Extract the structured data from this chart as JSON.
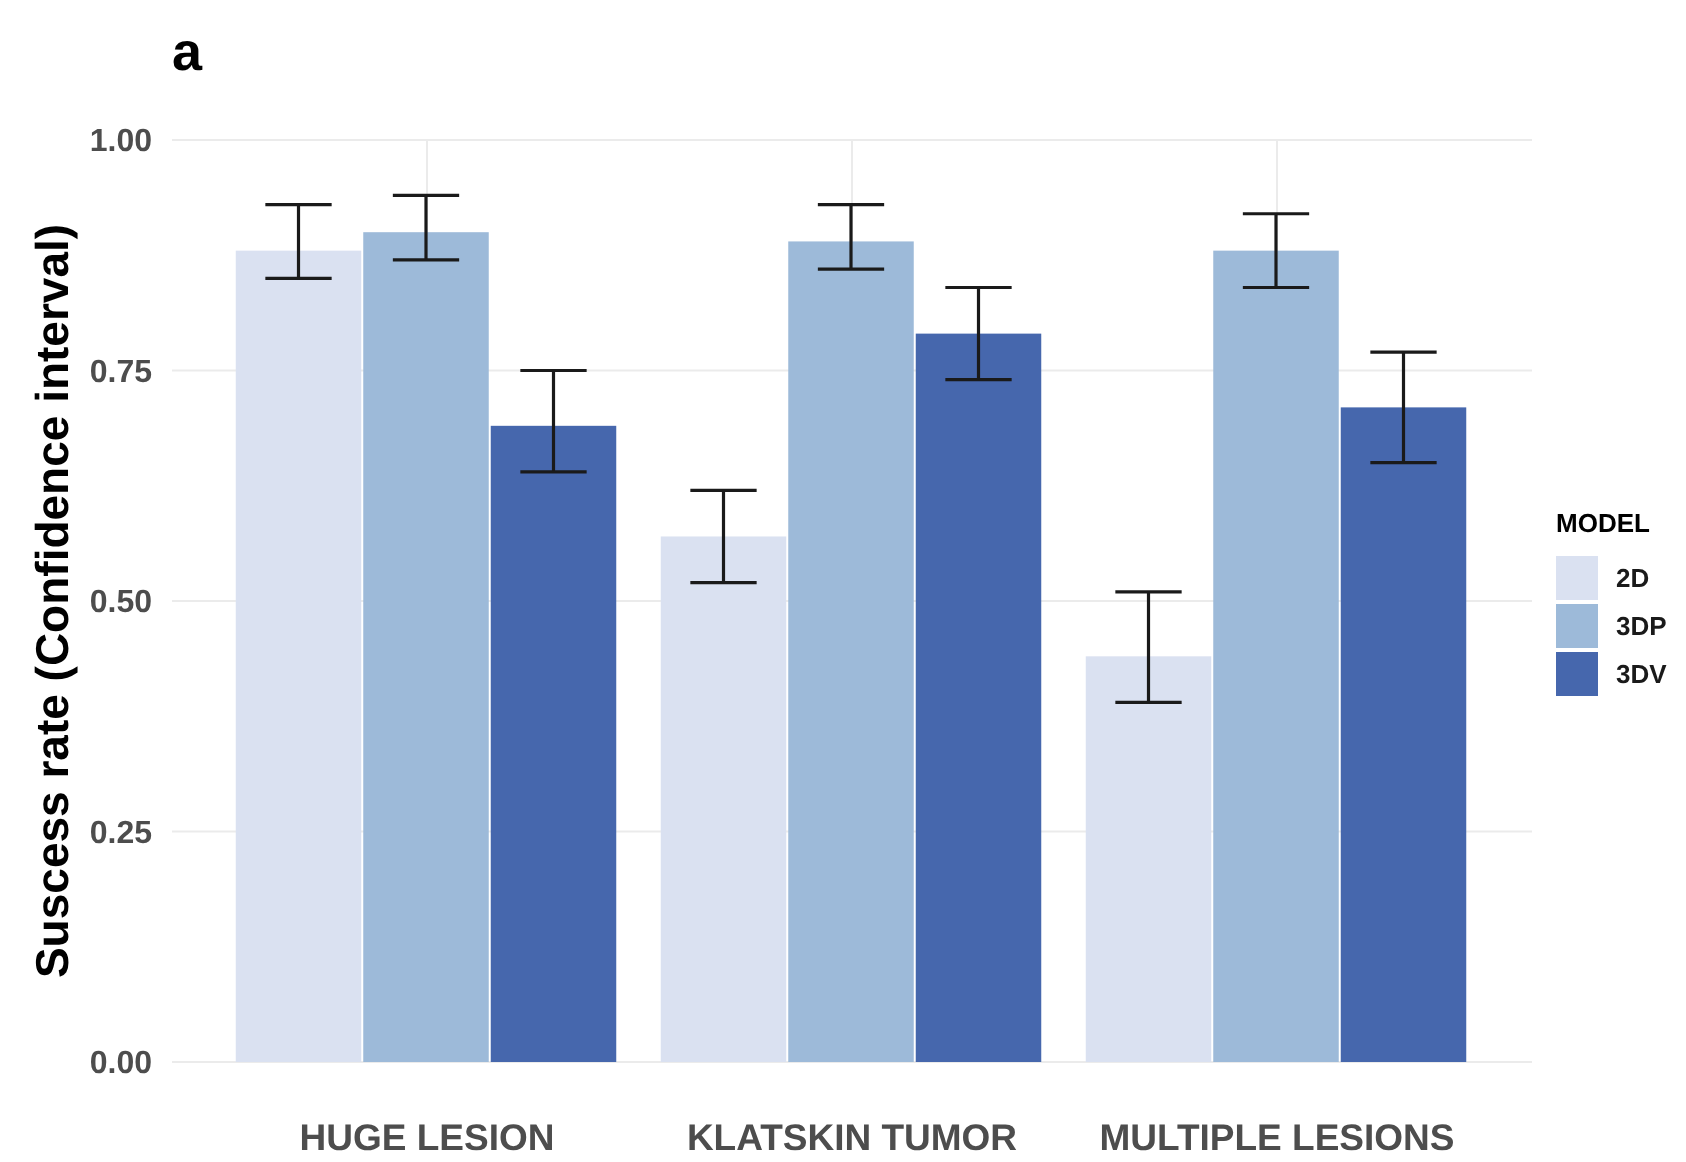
{
  "chart_data": {
    "type": "bar",
    "title": "a",
    "ylabel": "Suscess rate (Confidence interval)",
    "legend_title": "MODEL",
    "legend": "right",
    "grid": true,
    "categories": [
      "HUGE LESION",
      "KLATSKIN TUMOR",
      "MULTIPLE LESIONS"
    ],
    "series": [
      {
        "name": "2D",
        "color": "#dae1f1",
        "values": [
          0.88,
          0.57,
          0.44
        ],
        "errors": [
          [
            0.85,
            0.93
          ],
          [
            0.52,
            0.62
          ],
          [
            0.39,
            0.51
          ]
        ]
      },
      {
        "name": "3DP",
        "color": "#9dbad9",
        "values": [
          0.9,
          0.89,
          0.88
        ],
        "errors": [
          [
            0.87,
            0.94
          ],
          [
            0.86,
            0.93
          ],
          [
            0.84,
            0.92
          ]
        ]
      },
      {
        "name": "3DV",
        "color": "#4667ad",
        "values": [
          0.69,
          0.79,
          0.71
        ],
        "errors": [
          [
            0.64,
            0.75
          ],
          [
            0.74,
            0.84
          ],
          [
            0.65,
            0.77
          ]
        ]
      }
    ],
    "ylim": [
      0,
      1
    ],
    "yticks": [
      {
        "value": 0,
        "label": "0.00"
      },
      0.25,
      {
        "value": 0.5,
        "label": "0.50"
      },
      0.75,
      {
        "value": 1,
        "label": "1.00"
      }
    ]
  }
}
